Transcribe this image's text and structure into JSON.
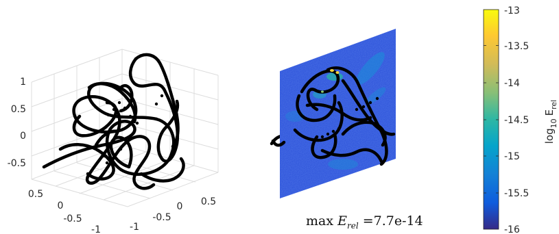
{
  "chart_data": [
    {
      "type": "line3d",
      "title": "",
      "description_axes": "3D curve with box grid",
      "z_ticks": [
        "1",
        "0.5",
        "0",
        "-0.5"
      ],
      "x_ticks": [
        "0.5",
        "0",
        "-0.5",
        "-1"
      ],
      "y_ticks": [
        "-1",
        "-0.5",
        "0",
        "0.5"
      ],
      "zlim": [
        -0.75,
        1
      ],
      "xlim": [
        -1,
        0.75
      ],
      "ylim": [
        -1,
        0.75
      ],
      "grid": true,
      "curve_color": "#000000"
    },
    {
      "type": "heatmap",
      "title": "",
      "caption": {
        "prefix": "max",
        "symbol": "E",
        "subscript": "rel",
        "value": "=7.7e-14"
      },
      "colormap": "parula",
      "clim": [
        -16,
        -13
      ],
      "colorbar": {
        "label_main": "log",
        "label_sub": "10",
        "label_var": "E",
        "label_var_sub": "rel",
        "ticks": [
          "-13",
          "-13.5",
          "-14",
          "-14.5",
          "-15",
          "-15.5",
          "-16"
        ]
      },
      "background_level": -15.6
    }
  ]
}
